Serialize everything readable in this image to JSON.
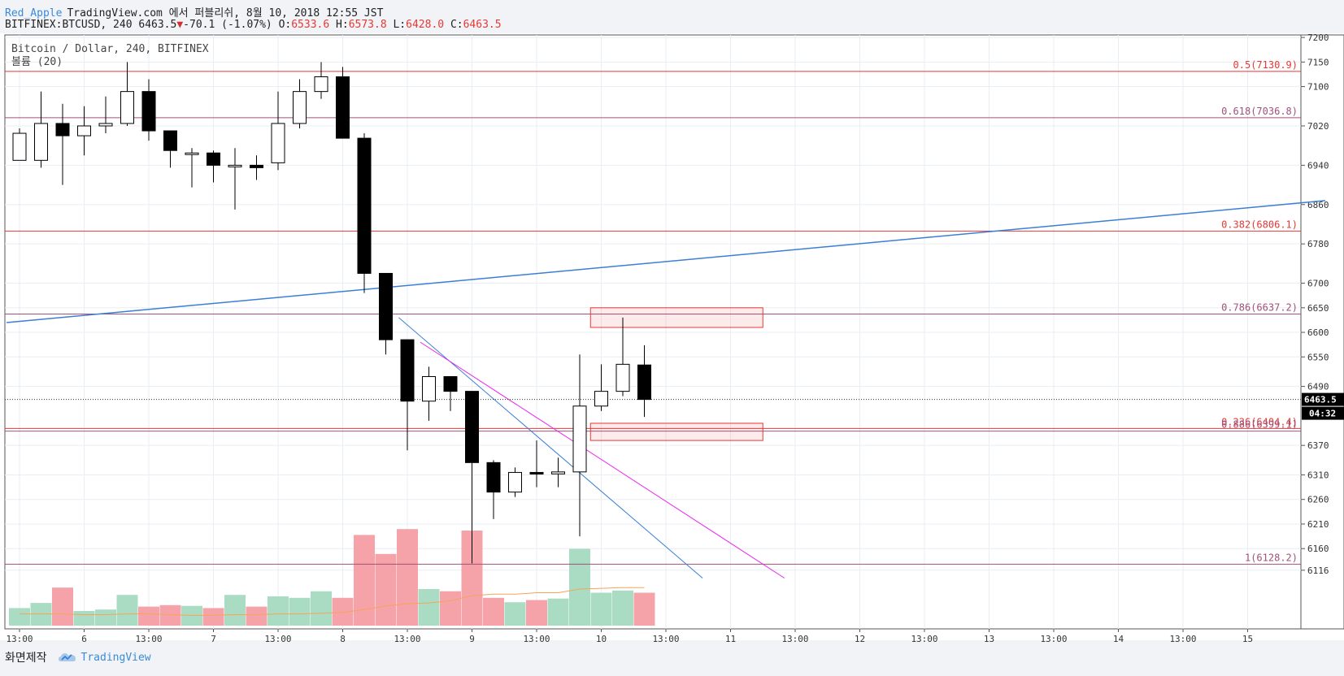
{
  "header": {
    "author": "Red_Apple",
    "published": "TradingView.com 에서 퍼블리쉬, 8월 10, 2018 12:55 JST",
    "symbol": "BITFINEX:BTCUSD, 240",
    "last": "6463.5",
    "change": "-70.1 (-1.07%)",
    "o_label": "O:",
    "o_val": "6533.6",
    "h_label": "H:",
    "h_val": "6573.8",
    "l_label": "L:",
    "l_val": "6428.0",
    "c_label": "C:",
    "c_val": "6463.5"
  },
  "footer": {
    "made_by": "화면제작",
    "brand": "TradingView"
  },
  "colors": {
    "bull_vol": "#a9dcc3",
    "bear_vol": "#f5a3a8",
    "fib": "#e53935",
    "fib_alt": "#a0527a",
    "trend_blue": "#3a7fd5",
    "magenta": "#ee22ee",
    "ma": "#f5a35c"
  },
  "chart_data": {
    "type": "candlestick",
    "title": "Bitcoin / Dollar, 240, BITFINEX",
    "volume_label": "볼륨 (20)",
    "price_axis_ticks": [
      7200,
      7150,
      7100,
      7020,
      6940,
      6860,
      6780,
      6700,
      6650,
      6600,
      6550,
      6490,
      6370,
      6310,
      6260,
      6210,
      6160,
      6116
    ],
    "time_axis_labels": [
      "13:00",
      "6",
      "13:00",
      "7",
      "13:00",
      "8",
      "13:00",
      "9",
      "13:00",
      "10",
      "13:00",
      "11",
      "13:00",
      "12",
      "13:00",
      "13",
      "13:00",
      "14",
      "13:00",
      "15"
    ],
    "last_price_label": "6463.5",
    "countdown_label": "04:32",
    "candles": [
      {
        "o": 6950,
        "h": 7015,
        "l": 6950,
        "c": 7005
      },
      {
        "o": 6950,
        "h": 7090,
        "l": 6935,
        "c": 7025
      },
      {
        "o": 7025,
        "h": 7065,
        "l": 6900,
        "c": 7000
      },
      {
        "o": 7000,
        "h": 7060,
        "l": 6960,
        "c": 7020
      },
      {
        "o": 7020,
        "h": 7080,
        "l": 7005,
        "c": 7025
      },
      {
        "o": 7025,
        "h": 7150,
        "l": 7020,
        "c": 7090
      },
      {
        "o": 7090,
        "h": 7115,
        "l": 6990,
        "c": 7010
      },
      {
        "o": 7010,
        "h": 7010,
        "l": 6935,
        "c": 6970
      },
      {
        "o": 6965,
        "h": 6975,
        "l": 6895,
        "c": 6965
      },
      {
        "o": 6965,
        "h": 6970,
        "l": 6905,
        "c": 6940
      },
      {
        "o": 6940,
        "h": 6975,
        "l": 6850,
        "c": 6940
      },
      {
        "o": 6940,
        "h": 6960,
        "l": 6910,
        "c": 6935
      },
      {
        "o": 6945,
        "h": 7090,
        "l": 6930,
        "c": 7025
      },
      {
        "o": 7025,
        "h": 7115,
        "l": 7015,
        "c": 7090
      },
      {
        "o": 7090,
        "h": 7150,
        "l": 7075,
        "c": 7120
      },
      {
        "o": 7120,
        "h": 7140,
        "l": 6995,
        "c": 6995
      },
      {
        "o": 6995,
        "h": 7005,
        "l": 6680,
        "c": 6720
      },
      {
        "o": 6720,
        "h": 6720,
        "l": 6555,
        "c": 6585
      },
      {
        "o": 6585,
        "h": 6585,
        "l": 6360,
        "c": 6460
      },
      {
        "o": 6460,
        "h": 6530,
        "l": 6420,
        "c": 6510
      },
      {
        "o": 6510,
        "h": 6510,
        "l": 6440,
        "c": 6480
      },
      {
        "o": 6480,
        "h": 6480,
        "l": 6130,
        "c": 6335
      },
      {
        "o": 6335,
        "h": 6340,
        "l": 6220,
        "c": 6275
      },
      {
        "o": 6275,
        "h": 6325,
        "l": 6265,
        "c": 6315
      },
      {
        "o": 6315,
        "h": 6380,
        "l": 6285,
        "c": 6312
      },
      {
        "o": 6312,
        "h": 6345,
        "l": 6285,
        "c": 6316
      },
      {
        "o": 6316,
        "h": 6555,
        "l": 6185,
        "c": 6450
      },
      {
        "o": 6450,
        "h": 6535,
        "l": 6440,
        "c": 6480
      },
      {
        "o": 6480,
        "h": 6630,
        "l": 6470,
        "c": 6535
      },
      {
        "o": 6533.6,
        "h": 6573.8,
        "l": 6428.0,
        "c": 6463.5
      }
    ],
    "volume": [
      0.24,
      0.31,
      0.52,
      0.2,
      0.22,
      0.42,
      0.26,
      0.28,
      0.27,
      0.24,
      0.42,
      0.26,
      0.4,
      0.38,
      0.47,
      0.38,
      1.24,
      0.98,
      1.32,
      0.5,
      0.47,
      1.3,
      0.38,
      0.32,
      0.35,
      0.37,
      1.05,
      0.45,
      0.48,
      0.45
    ],
    "volume_ma": [
      0.16,
      0.16,
      0.16,
      0.15,
      0.15,
      0.16,
      0.16,
      0.15,
      0.14,
      0.14,
      0.15,
      0.15,
      0.16,
      0.16,
      0.17,
      0.18,
      0.22,
      0.27,
      0.3,
      0.31,
      0.34,
      0.41,
      0.43,
      0.43,
      0.45,
      0.45,
      0.5,
      0.51,
      0.52,
      0.52
    ],
    "fib_levels": [
      {
        "label": "0.5(7130.9)",
        "price": 7130.9,
        "color": "#e53935"
      },
      {
        "label": "0.618(7036.8)",
        "price": 7036.8,
        "color": "#a0527a"
      },
      {
        "label": "0.382(6806.1)",
        "price": 6806.1,
        "color": "#e53935"
      },
      {
        "label": "0.786(6637.2)",
        "price": 6637.2,
        "color": "#a0527a"
      },
      {
        "label": "0.236(6404.4)",
        "price": 6404.4,
        "color": "#e53935"
      },
      {
        "label": "0.886(6399.1)",
        "price": 6399.1,
        "color": "#a0527a"
      },
      {
        "label": "1(6128.2)",
        "price": 6128.2,
        "color": "#a0527a"
      }
    ],
    "zones": [
      {
        "i0": 26.5,
        "i1": 34.5,
        "p_top": 6650,
        "p_bot": 6610
      },
      {
        "i0": 26.5,
        "i1": 34.5,
        "p_top": 6415,
        "p_bot": 6380
      }
    ],
    "trendlines": [
      {
        "i0": -0.6,
        "p0": 6620,
        "i1": 60.6,
        "p1": 6868,
        "color": "#3a7fd5",
        "w": 1.5
      },
      {
        "i0": 17.6,
        "p0": 6630,
        "i1": 31.7,
        "p1": 6100,
        "color": "#3a7fd5",
        "w": 1
      },
      {
        "i0": 18.6,
        "p0": 6580,
        "i1": 35.5,
        "p1": 6100,
        "color": "#ee22ee",
        "w": 1
      }
    ],
    "grid": true
  }
}
